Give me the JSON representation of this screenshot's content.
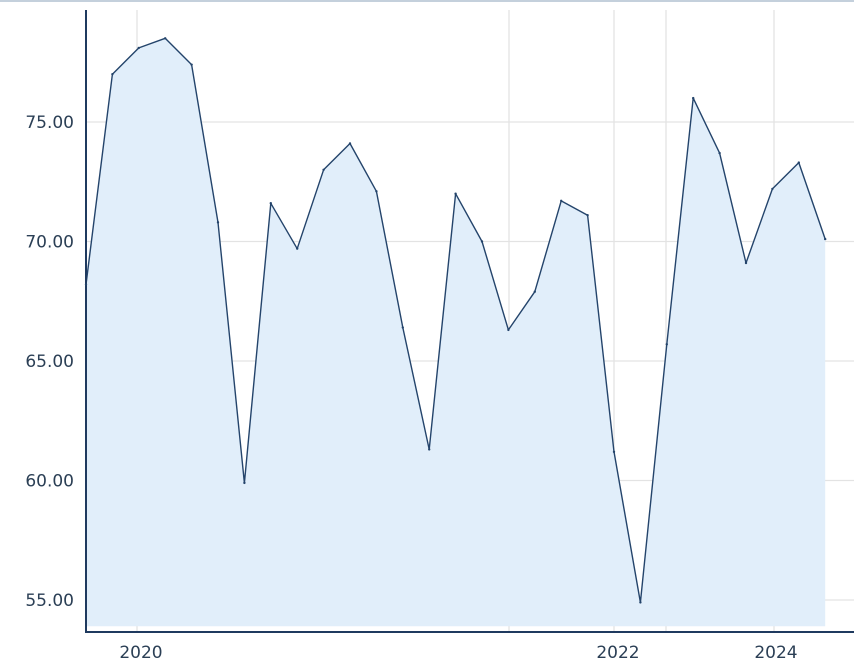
{
  "chart_data": {
    "type": "area",
    "title": "",
    "xlabel": "",
    "ylabel": "",
    "ylim": [
      53.9,
      79.8
    ],
    "xlim": [
      2019.4,
      2024.8
    ],
    "yticks": [
      "55.00",
      "60.00",
      "65.00",
      "70.00",
      "75.00"
    ],
    "yticks_values": [
      55,
      60,
      65,
      70,
      75
    ],
    "xticks": [
      "2020",
      "2022",
      "2024"
    ],
    "xticks_values": [
      2020,
      2022,
      2024
    ],
    "grid": true,
    "colors": {
      "line": "#24446b",
      "fill": "#e1eefa",
      "axis": "#1f3a5f",
      "grid": "#e3e3e3",
      "text": "#2b3f55"
    },
    "series": [
      {
        "x": [
          2019.4,
          2019.6,
          2019.8,
          2020.0,
          2020.2,
          2020.4,
          2020.6,
          2020.8,
          2021.0,
          2021.2,
          2021.4,
          2021.6,
          2021.8,
          2022.0,
          2022.2,
          2022.4,
          2022.6,
          2022.8,
          2023.0,
          2023.2,
          2023.4,
          2023.6,
          2023.8,
          2024.0,
          2024.2,
          2024.4,
          2024.6,
          2024.8,
          2025.0
        ],
        "values": [
          68.2,
          77.0,
          78.1,
          78.5,
          77.4,
          70.8,
          59.9,
          71.6,
          69.7,
          73.0,
          74.1,
          72.1,
          66.4,
          61.3,
          72.0,
          70.0,
          66.3,
          67.9,
          71.7,
          71.1,
          61.2,
          54.9,
          65.7,
          76.0,
          73.7,
          69.1,
          72.2,
          73.3,
          70.1
        ]
      }
    ]
  }
}
